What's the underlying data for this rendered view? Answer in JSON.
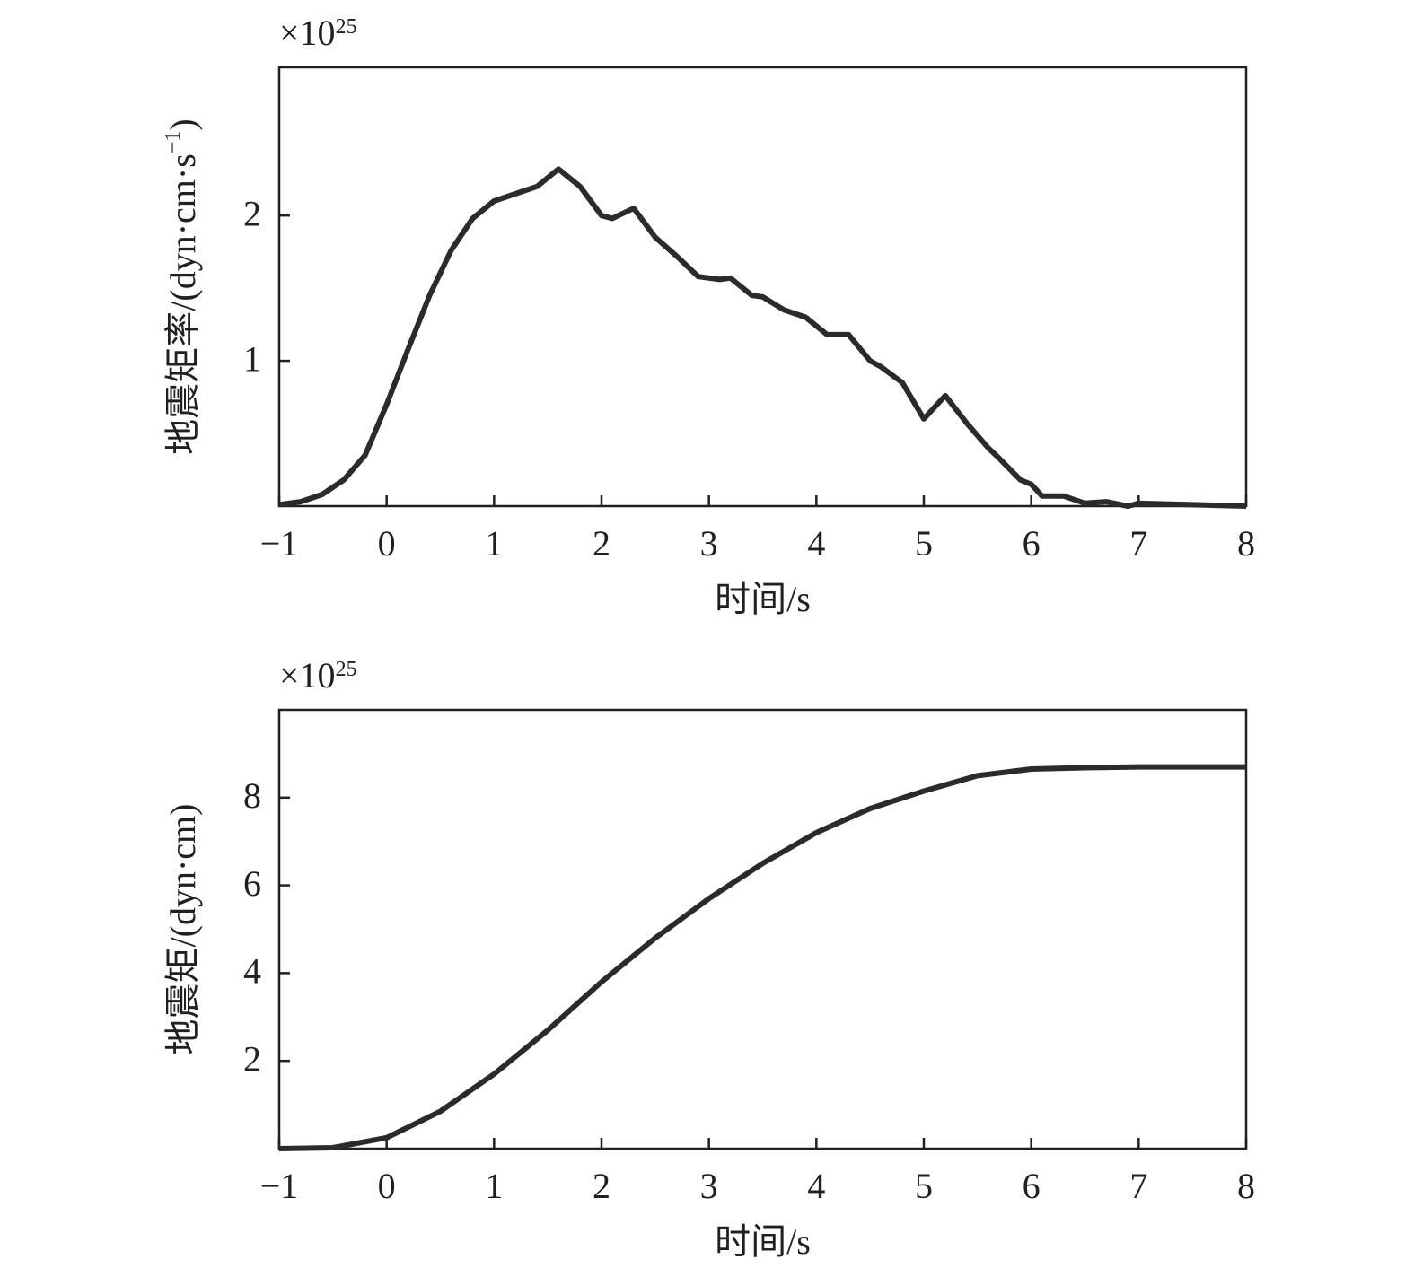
{
  "chart_data": [
    {
      "type": "line",
      "multiplier": "×10",
      "multiplier_exp": "25",
      "ylabel": "地震矩率/(dyn·cm·s",
      "ylabel_sup": "−1",
      "ylabel_end": ")",
      "xlabel": "时间/s",
      "xlim": [
        -1,
        8
      ],
      "ylim": [
        0,
        3.02
      ],
      "xticks": [
        {
          "value": -1,
          "label": "−1"
        },
        0,
        1,
        2,
        3,
        4,
        5,
        6,
        7,
        8
      ],
      "yticks": [
        1,
        2
      ],
      "color": "#2b2b2b",
      "x": [
        -1,
        -0.8,
        -0.6,
        -0.4,
        -0.2,
        0,
        0.2,
        0.4,
        0.6,
        0.8,
        1.0,
        1.2,
        1.4,
        1.6,
        1.8,
        2.0,
        2.1,
        2.3,
        2.5,
        2.7,
        2.9,
        3.1,
        3.2,
        3.4,
        3.5,
        3.7,
        3.9,
        4.1,
        4.3,
        4.5,
        4.6,
        4.8,
        5.0,
        5.2,
        5.4,
        5.6,
        5.7,
        5.9,
        6.0,
        6.1,
        6.3,
        6.5,
        6.7,
        6.9,
        7.0,
        7.5,
        8.0
      ],
      "values": [
        0.01,
        0.03,
        0.08,
        0.18,
        0.35,
        0.7,
        1.08,
        1.45,
        1.76,
        1.98,
        2.1,
        2.15,
        2.2,
        2.32,
        2.2,
        2.0,
        1.98,
        2.05,
        1.85,
        1.72,
        1.58,
        1.56,
        1.57,
        1.45,
        1.44,
        1.35,
        1.3,
        1.18,
        1.18,
        1.0,
        0.96,
        0.85,
        0.6,
        0.76,
        0.57,
        0.4,
        0.33,
        0.18,
        0.15,
        0.07,
        0.07,
        0.02,
        0.03,
        0.0,
        0.02,
        0.01,
        0.0
      ]
    },
    {
      "type": "line",
      "multiplier": "×10",
      "multiplier_exp": "25",
      "ylabel": "地震矩/(dyn·cm)",
      "xlabel": "时间/s",
      "xlim": [
        -1,
        8
      ],
      "ylim": [
        0,
        10
      ],
      "xticks": [
        {
          "value": -1,
          "label": "−1"
        },
        0,
        1,
        2,
        3,
        4,
        5,
        6,
        7,
        8
      ],
      "yticks": [
        2,
        4,
        6,
        8
      ],
      "color": "#2b2b2b",
      "x": [
        -1,
        -0.5,
        0,
        0.5,
        1,
        1.5,
        2,
        2.5,
        3,
        3.5,
        4,
        4.5,
        5,
        5.5,
        6,
        6.5,
        7,
        8
      ],
      "values": [
        0,
        0.02,
        0.25,
        0.85,
        1.7,
        2.7,
        3.8,
        4.8,
        5.7,
        6.5,
        7.2,
        7.75,
        8.15,
        8.5,
        8.65,
        8.68,
        8.7,
        8.7
      ]
    }
  ]
}
